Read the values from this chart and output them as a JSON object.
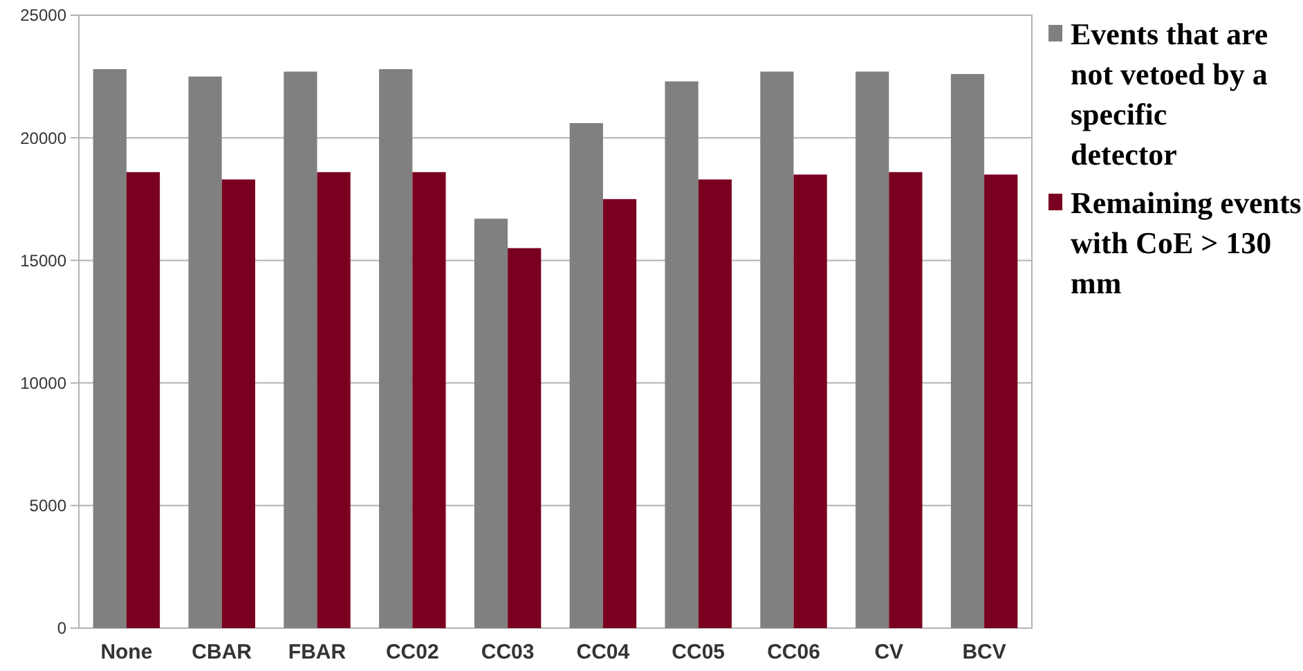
{
  "chart_data": {
    "type": "bar",
    "categories": [
      "None",
      "CBAR",
      "FBAR",
      "CC02",
      "CC03",
      "CC04",
      "CC05",
      "CC06",
      "CV",
      "BCV"
    ],
    "series": [
      {
        "name": "Events that are not vetoed by a specific detector",
        "color": "#808080",
        "values": [
          22800,
          22500,
          22700,
          22800,
          16700,
          20600,
          22300,
          22700,
          22700,
          22600
        ]
      },
      {
        "name": "Remaining events with CoE > 130 mm",
        "color": "#7a0020",
        "values": [
          18600,
          18300,
          18600,
          18600,
          15500,
          17500,
          18300,
          18500,
          18600,
          18500
        ]
      }
    ],
    "ylim": [
      0,
      25000
    ],
    "yticks": [
      0,
      5000,
      10000,
      15000,
      20000,
      25000
    ],
    "grid": "y",
    "legend": "right"
  }
}
